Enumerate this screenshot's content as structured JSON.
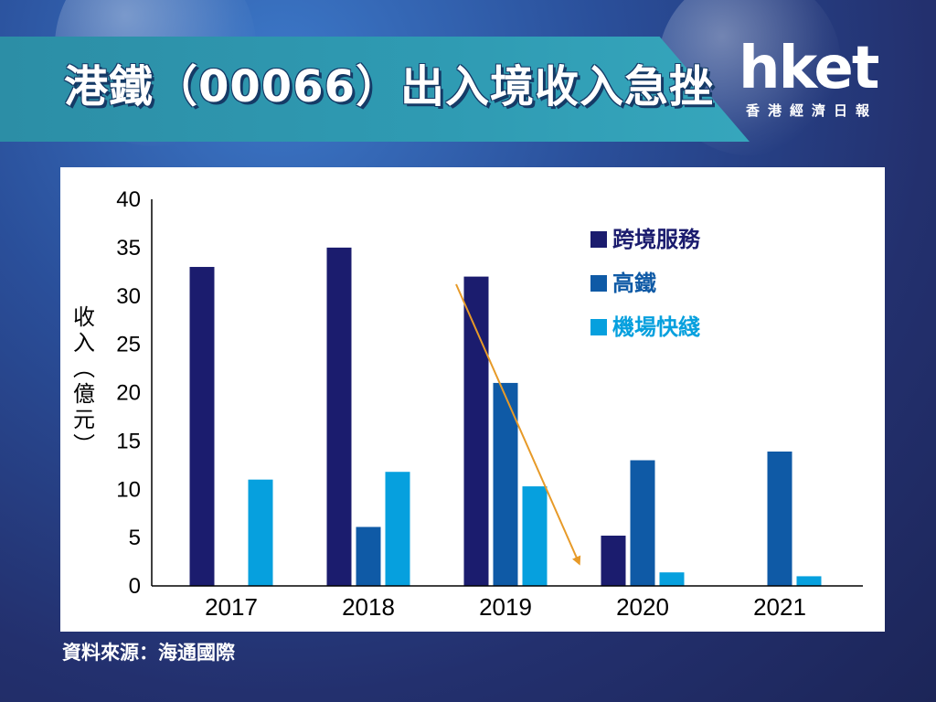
{
  "header": {
    "title": "港鐵（00066）出入境收入急挫"
  },
  "logo": {
    "word": "hket",
    "subtitle": "香港經濟日報"
  },
  "source": "資料來源：海通國際",
  "colors": {
    "series1": "#1b1c6e",
    "series2": "#0f5aa6",
    "series3": "#06a0de",
    "arrow": "#e79a28"
  },
  "chart_data": {
    "type": "bar",
    "categories": [
      "2017",
      "2018",
      "2019",
      "2020",
      "2021"
    ],
    "series": [
      {
        "name": "跨境服務",
        "values": [
          33,
          35,
          32,
          5.2,
          null
        ]
      },
      {
        "name": "高鐵",
        "values": [
          null,
          6.1,
          21,
          13,
          13.9
        ]
      },
      {
        "name": "機場快綫",
        "values": [
          11,
          11.8,
          10.3,
          1.4,
          1
        ]
      }
    ],
    "ylabel": "收入（億元）",
    "ylim": [
      0,
      40
    ],
    "yticks": [
      "0",
      "5",
      "10",
      "15",
      "20",
      "25",
      "30",
      "35",
      "40"
    ],
    "legend_position": "top-right",
    "annotation": "downward arrow from 2019 跨境服務 to 2020"
  }
}
